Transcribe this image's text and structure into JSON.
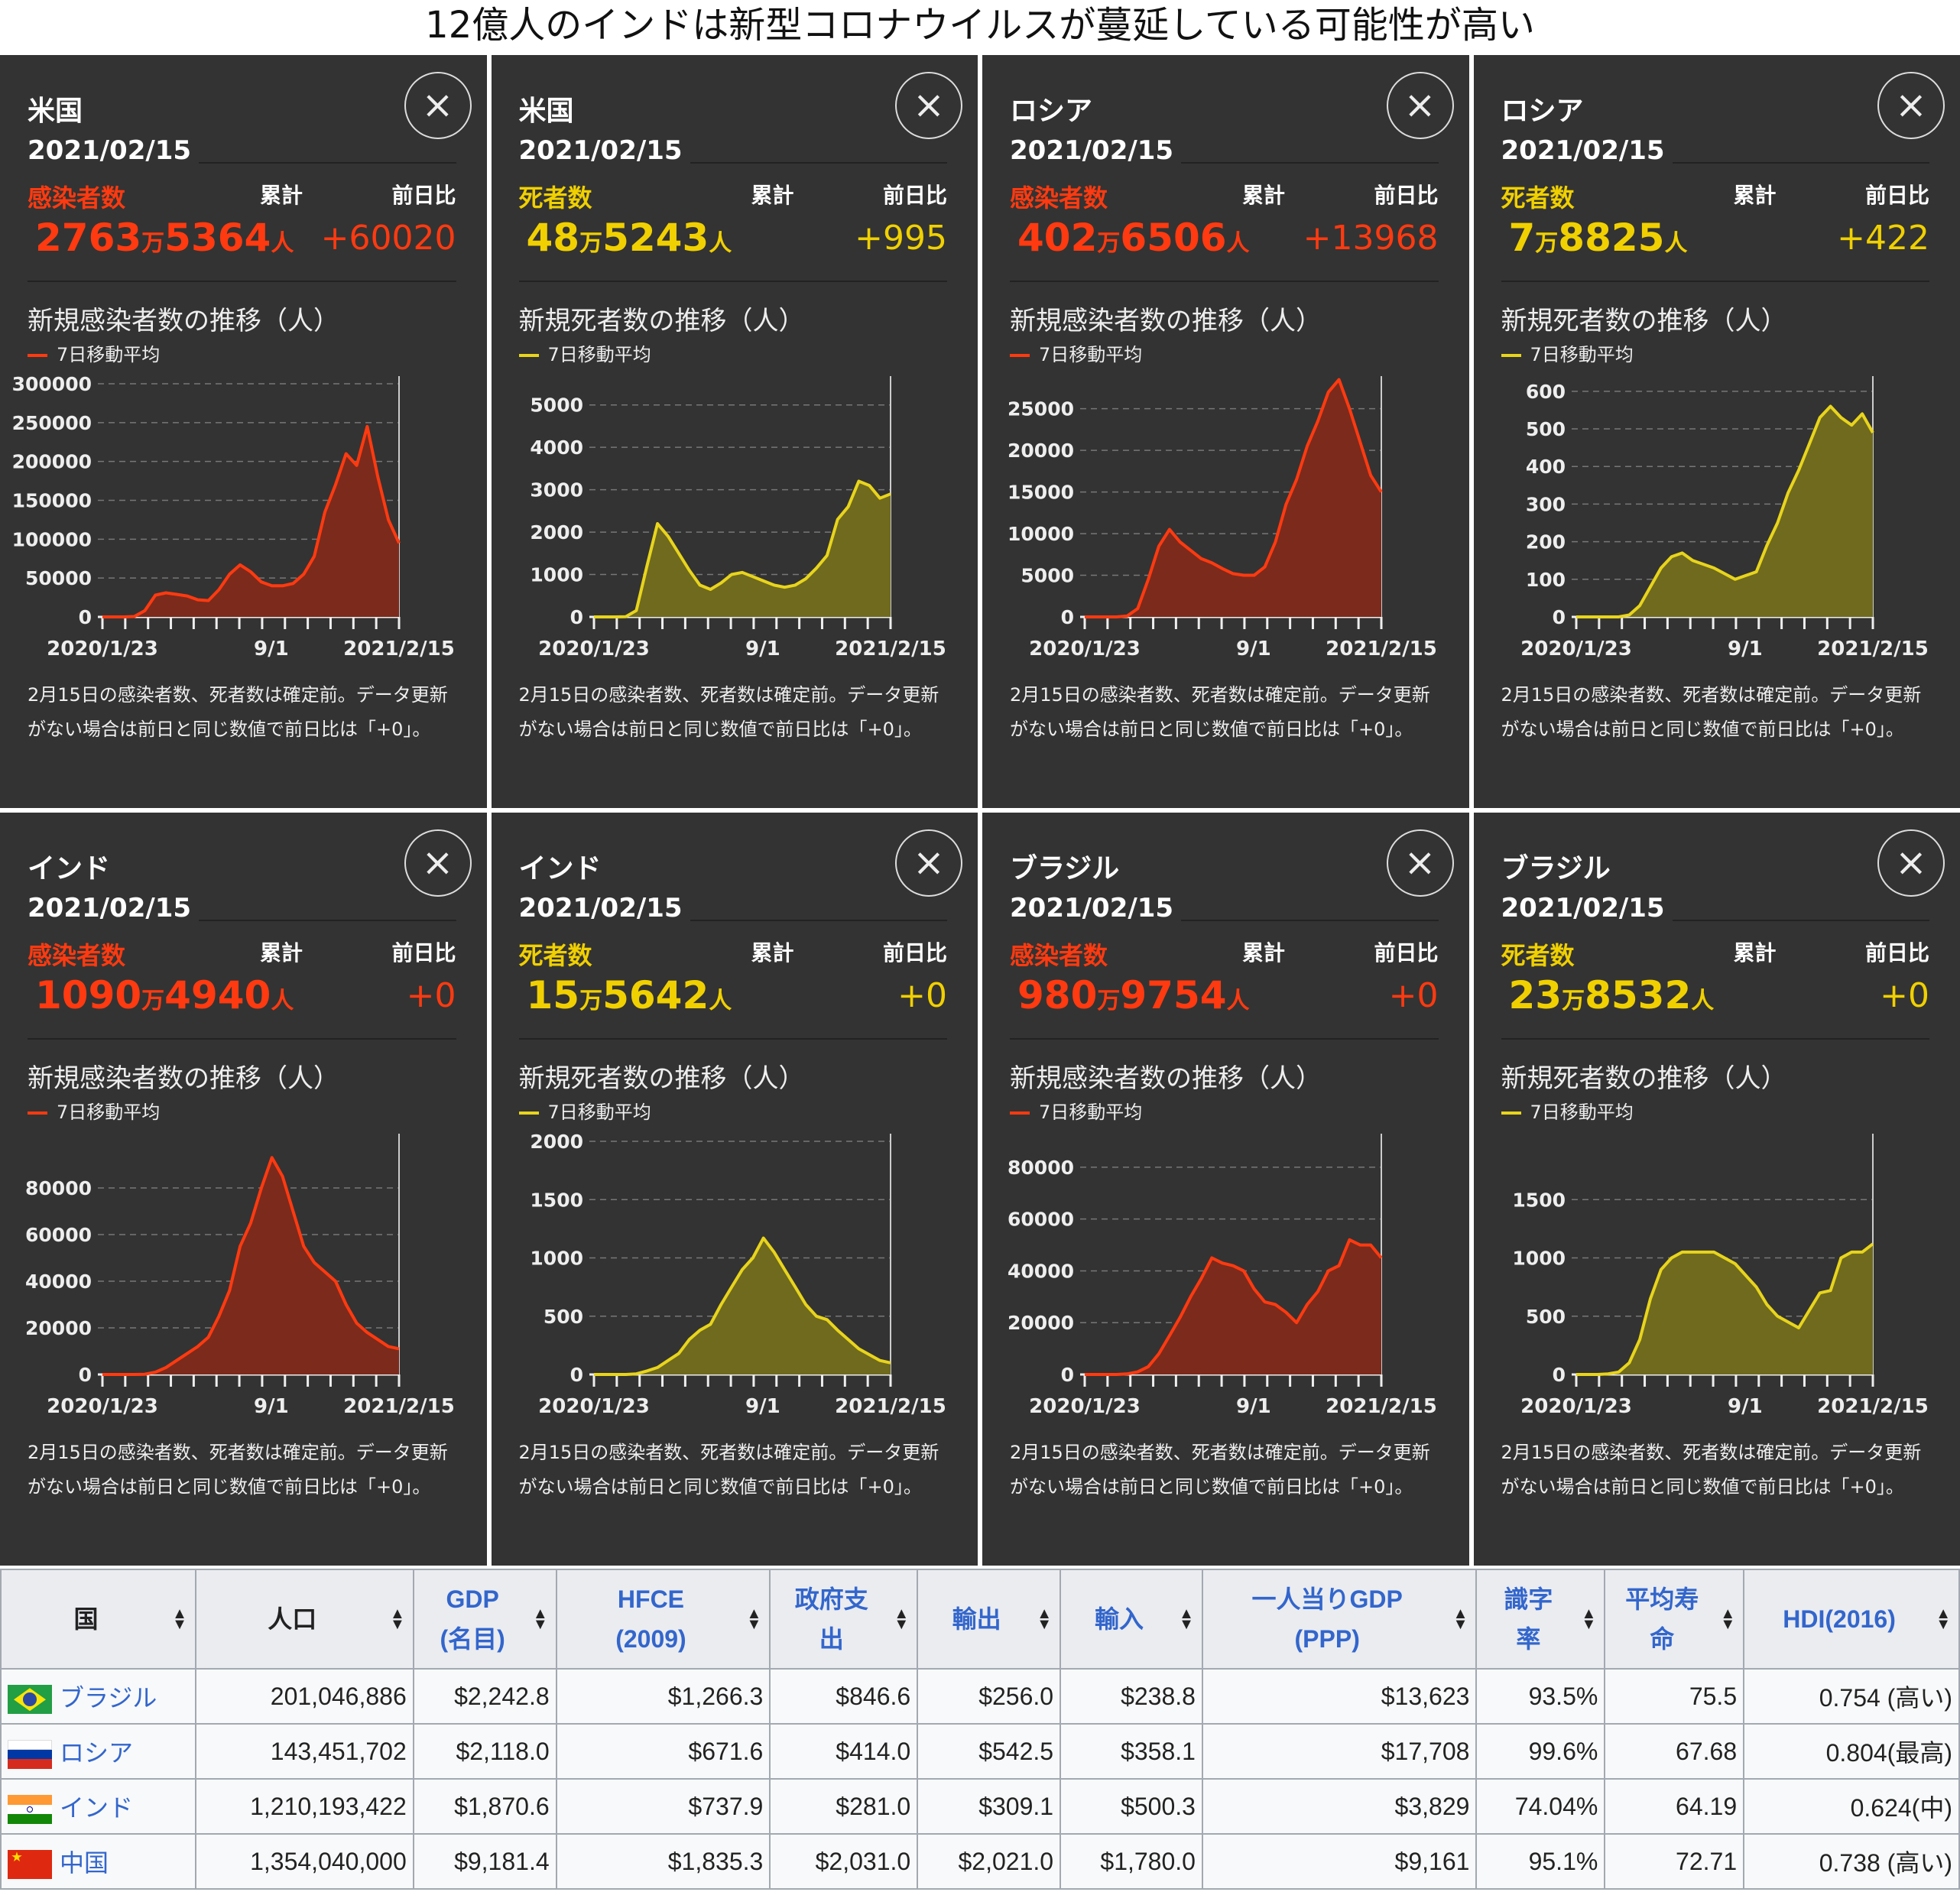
{
  "title": "12億人のインドは新型コロナウイルスが蔓延している可能性が高い",
  "panel_common": {
    "date": "2021/02/15",
    "cum_label": "累計",
    "dod_label": "前日比",
    "legend": "7日移動平均",
    "close": "×",
    "note": "2月15日の感染者数、死者数は確定前。データ更新がない場合は前日と同じ数値で前日比は「+0」。",
    "x_ticks": [
      "2020/1/23",
      "9/1",
      "2021/2/15"
    ]
  },
  "colors": {
    "cases_line": "#ff3a10",
    "cases_fill": "#7c2a1c",
    "deaths_line": "#e8d41c",
    "deaths_fill": "#6f6a1e",
    "cases_text": "#ff3a10",
    "deaths_text": "#f0d000"
  },
  "panels": [
    {
      "country": "米国",
      "metric": "感染者数",
      "kind": "cases",
      "total_man": "2763",
      "total_rest": "5364",
      "man": "万",
      "unit": "人",
      "change": "+60020",
      "chart_title": "新規感染者数の推移（人）"
    },
    {
      "country": "米国",
      "metric": "死者数",
      "kind": "deaths",
      "total_man": "48",
      "total_rest": "5243",
      "man": "万",
      "unit": "人",
      "change": "+995",
      "chart_title": "新規死者数の推移（人）"
    },
    {
      "country": "ロシア",
      "metric": "感染者数",
      "kind": "cases",
      "total_man": "402",
      "total_rest": "6506",
      "man": "万",
      "unit": "人",
      "change": "+13968",
      "chart_title": "新規感染者数の推移（人）"
    },
    {
      "country": "ロシア",
      "metric": "死者数",
      "kind": "deaths",
      "total_man": "7",
      "total_rest": "8825",
      "man": "万",
      "unit": "人",
      "change": "+422",
      "chart_title": "新規死者数の推移（人）"
    },
    {
      "country": "インド",
      "metric": "感染者数",
      "kind": "cases",
      "total_man": "1090",
      "total_rest": "4940",
      "man": "万",
      "unit": "人",
      "change": "+0",
      "chart_title": "新規感染者数の推移（人）"
    },
    {
      "country": "インド",
      "metric": "死者数",
      "kind": "deaths",
      "total_man": "15",
      "total_rest": "5642",
      "man": "万",
      "unit": "人",
      "change": "+0",
      "chart_title": "新規死者数の推移（人）"
    },
    {
      "country": "ブラジル",
      "metric": "感染者数",
      "kind": "cases",
      "total_man": "980",
      "total_rest": "9754",
      "man": "万",
      "unit": "人",
      "change": "+0",
      "chart_title": "新規感染者数の推移（人）"
    },
    {
      "country": "ブラジル",
      "metric": "死者数",
      "kind": "deaths",
      "total_man": "23",
      "total_rest": "8532",
      "man": "万",
      "unit": "人",
      "change": "+0",
      "chart_title": "新規死者数の推移（人）"
    }
  ],
  "chart_data": [
    {
      "type": "area",
      "title": "米国 新規感染者数の推移（人）",
      "x_range": [
        "2020/1/23",
        "2021/2/15"
      ],
      "x_step": "biweekly",
      "yticks": [
        0,
        50000,
        100000,
        150000,
        200000,
        250000,
        300000
      ],
      "ylim": [
        0,
        300000
      ],
      "series": [
        {
          "name": "7日移動平均",
          "values": [
            0,
            0,
            0,
            500,
            8000,
            28000,
            31000,
            29000,
            27000,
            22000,
            21000,
            35000,
            55000,
            67000,
            58000,
            45000,
            40000,
            40000,
            43000,
            55000,
            78000,
            135000,
            170000,
            210000,
            195000,
            245000,
            180000,
            125000,
            95000
          ]
        }
      ]
    },
    {
      "type": "area",
      "title": "米国 新規死者数の推移（人）",
      "x_range": [
        "2020/1/23",
        "2021/2/15"
      ],
      "x_step": "biweekly",
      "yticks": [
        0,
        1000,
        2000,
        3000,
        4000,
        5000
      ],
      "ylim": [
        0,
        5500
      ],
      "series": [
        {
          "name": "7日移動平均",
          "values": [
            0,
            0,
            0,
            5,
            150,
            1200,
            2200,
            1900,
            1500,
            1100,
            750,
            650,
            800,
            1000,
            1050,
            950,
            850,
            750,
            700,
            750,
            900,
            1150,
            1450,
            2300,
            2600,
            3200,
            3100,
            2800,
            2900
          ]
        }
      ]
    },
    {
      "type": "area",
      "title": "ロシア 新規感染者数の推移（人）",
      "x_range": [
        "2020/1/23",
        "2021/2/15"
      ],
      "x_step": "biweekly",
      "yticks": [
        0,
        5000,
        10000,
        15000,
        20000,
        25000
      ],
      "ylim": [
        0,
        28000
      ],
      "series": [
        {
          "name": "7日移動平均",
          "values": [
            0,
            0,
            0,
            0,
            100,
            1000,
            4500,
            8500,
            10500,
            9000,
            8000,
            7000,
            6500,
            5800,
            5200,
            5000,
            5000,
            6000,
            9000,
            13500,
            16500,
            20500,
            23500,
            27000,
            28500,
            25000,
            21000,
            17000,
            15000
          ]
        }
      ]
    },
    {
      "type": "area",
      "title": "ロシア 新規死者数の推移（人）",
      "x_range": [
        "2020/1/23",
        "2021/2/15"
      ],
      "x_step": "biweekly",
      "yticks": [
        0,
        100,
        200,
        300,
        400,
        500,
        600
      ],
      "ylim": [
        0,
        620
      ],
      "series": [
        {
          "name": "7日移動平均",
          "values": [
            0,
            0,
            0,
            0,
            0,
            5,
            30,
            80,
            130,
            160,
            170,
            150,
            140,
            130,
            115,
            100,
            110,
            120,
            190,
            250,
            330,
            390,
            460,
            530,
            560,
            530,
            510,
            540,
            490
          ]
        }
      ]
    },
    {
      "type": "area",
      "title": "インド 新規感染者数の推移（人）",
      "x_range": [
        "2020/1/23",
        "2021/2/15"
      ],
      "x_step": "biweekly",
      "yticks": [
        0,
        20000,
        40000,
        60000,
        80000
      ],
      "ylim": [
        0,
        100000
      ],
      "series": [
        {
          "name": "7日移動平均",
          "values": [
            0,
            0,
            0,
            0,
            100,
            1000,
            3000,
            6000,
            9000,
            12000,
            16000,
            25000,
            36000,
            55000,
            65000,
            80000,
            93000,
            85000,
            70000,
            55000,
            48000,
            44000,
            40000,
            30000,
            22000,
            18000,
            15000,
            12000,
            11000
          ]
        }
      ]
    },
    {
      "type": "area",
      "title": "インド 新規死者数の推移（人）",
      "x_range": [
        "2020/1/23",
        "2021/2/15"
      ],
      "x_step": "biweekly",
      "yticks": [
        0,
        500,
        1000,
        1500,
        2000
      ],
      "ylim": [
        0,
        2000
      ],
      "series": [
        {
          "name": "7日移動平均",
          "values": [
            0,
            0,
            0,
            0,
            5,
            30,
            60,
            120,
            180,
            300,
            380,
            430,
            600,
            750,
            900,
            1000,
            1170,
            1050,
            900,
            750,
            600,
            500,
            470,
            380,
            300,
            220,
            170,
            120,
            100
          ]
        }
      ]
    },
    {
      "type": "area",
      "title": "ブラジル 新規感染者数の推移（人）",
      "x_range": [
        "2020/1/23",
        "2021/2/15"
      ],
      "x_step": "biweekly",
      "yticks": [
        0,
        20000,
        40000,
        60000,
        80000
      ],
      "ylim": [
        0,
        90000
      ],
      "series": [
        {
          "name": "7日移動平均",
          "values": [
            0,
            0,
            0,
            0,
            200,
            1000,
            3000,
            8000,
            15000,
            22000,
            30000,
            37000,
            45000,
            43000,
            42000,
            40000,
            33000,
            28000,
            27000,
            24000,
            20000,
            27000,
            32000,
            40000,
            42000,
            52000,
            50000,
            50000,
            45000
          ]
        }
      ]
    },
    {
      "type": "area",
      "title": "ブラジル 新規死者数の推移（人）",
      "x_range": [
        "2020/1/23",
        "2021/2/15"
      ],
      "x_step": "biweekly",
      "yticks": [
        0,
        500,
        1000,
        1500
      ],
      "ylim": [
        0,
        2000
      ],
      "series": [
        {
          "name": "7日移動平均",
          "values": [
            0,
            0,
            0,
            5,
            20,
            100,
            300,
            650,
            900,
            1000,
            1050,
            1050,
            1050,
            1050,
            1000,
            950,
            850,
            750,
            600,
            500,
            450,
            400,
            550,
            700,
            720,
            1000,
            1050,
            1050,
            1120
          ]
        }
      ]
    }
  ],
  "table": {
    "headers": [
      "国",
      "人口",
      "GDP\n(名目)",
      "HFCE\n(2009)",
      "政府支\n出",
      "輸出",
      "輸入",
      "一人当りGDP\n(PPP)",
      "識字\n率",
      "平均寿\n命",
      "HDI(2016)"
    ],
    "sort_icon": "▲▼",
    "rows": [
      {
        "flag": "brazil",
        "cells": [
          "ブラジル",
          "201,046,886",
          "$2,242.8",
          "$1,266.3",
          "$846.6",
          "$256.0",
          "$238.8",
          "$13,623",
          "93.5%",
          "75.5",
          "0.754 (高い)"
        ]
      },
      {
        "flag": "russia",
        "cells": [
          "ロシア",
          "143,451,702",
          "$2,118.0",
          "$671.6",
          "$414.0",
          "$542.5",
          "$358.1",
          "$17,708",
          "99.6%",
          "67.68",
          "0.804(最高)"
        ]
      },
      {
        "flag": "india",
        "cells": [
          "インド",
          "1,210,193,422",
          "$1,870.6",
          "$737.9",
          "$281.0",
          "$309.1",
          "$500.3",
          "$3,829",
          "74.04%",
          "64.19",
          "0.624(中)"
        ]
      },
      {
        "flag": "china",
        "cells": [
          "中国",
          "1,354,040,000",
          "$9,181.4",
          "$1,835.3",
          "$2,031.0",
          "$2,021.0",
          "$1,780.0",
          "$9,161",
          "95.1%",
          "72.71",
          "0.738 (高い)"
        ]
      }
    ]
  }
}
